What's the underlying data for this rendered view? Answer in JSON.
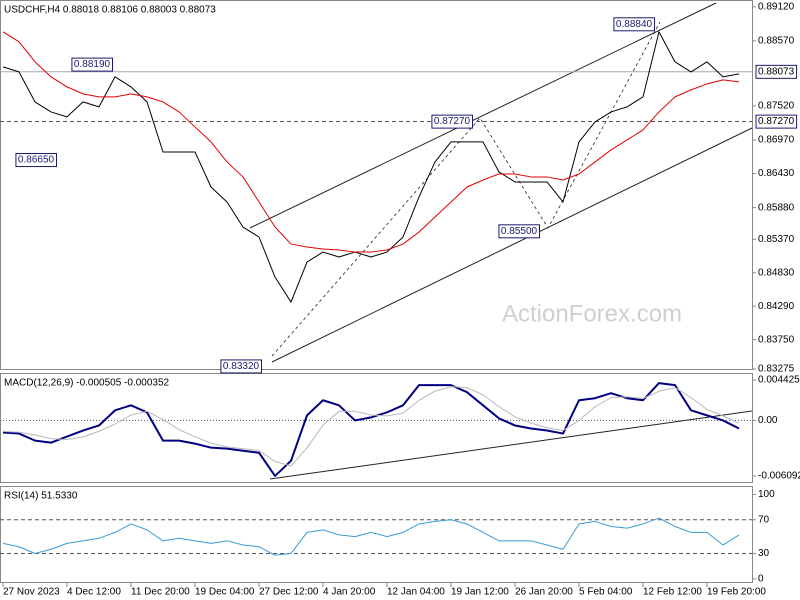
{
  "chart_data": [
    {
      "type": "line",
      "title": "USDCHF,H4  0.88018 0.88106 0.88003 0.88073",
      "watermark": "ActionForex.com",
      "ylim": [
        0.8923,
        0.8326
      ],
      "yticks": [
        {
          "value": 0.8912,
          "label": "0.89120"
        },
        {
          "value": 0.8857,
          "label": "0.88570"
        },
        {
          "value": 0.8752,
          "label": "0.87520"
        },
        {
          "value": 0.8697,
          "label": "0.86970"
        },
        {
          "value": 0.8643,
          "label": "0.86430"
        },
        {
          "value": 0.8588,
          "label": "0.85880"
        },
        {
          "value": 0.8537,
          "label": "0.85370"
        },
        {
          "value": 0.8483,
          "label": "0.84830"
        },
        {
          "value": 0.8429,
          "label": "0.84290"
        },
        {
          "value": 0.8375,
          "label": "0.83750"
        },
        {
          "value": 0.83275,
          "label": "0.83275"
        }
      ],
      "series": [
        {
          "color": "#000000",
          "values": [
            0.88151,
            0.8807,
            0.87586,
            0.87424,
            0.87344,
            0.87586,
            0.87505,
            0.8799,
            0.87828,
            0.87586,
            0.86778,
            0.86778,
            0.86778,
            0.86213,
            0.85971,
            0.85567,
            0.85406,
            0.8476,
            0.84356,
            0.85002,
            0.85163,
            0.85083,
            0.85163,
            0.85083,
            0.85163,
            0.85406,
            0.86052,
            0.86617,
            0.8694,
            0.8694,
            0.8694,
            0.86455,
            0.86294,
            0.86294,
            0.86294,
            0.85971,
            0.8694,
            0.87263,
            0.87424,
            0.87505,
            0.87667,
            0.88716,
            0.88232,
            0.8807,
            0.88232,
            0.8799,
            0.88038
          ]
        },
        {
          "color": "#e00000",
          "values": [
            0.88716,
            0.88555,
            0.88232,
            0.8799,
            0.87828,
            0.87715,
            0.87667,
            0.87667,
            0.87715,
            0.87667,
            0.87586,
            0.87424,
            0.87182,
            0.8694,
            0.86617,
            0.86375,
            0.85971,
            0.85567,
            0.85292,
            0.85244,
            0.85212,
            0.85196,
            0.85163,
            0.85163,
            0.85196,
            0.85292,
            0.85486,
            0.85729,
            0.85971,
            0.86213,
            0.86326,
            0.86423,
            0.86423,
            0.86375,
            0.86375,
            0.86326,
            0.86423,
            0.86617,
            0.86811,
            0.86972,
            0.87134,
            0.87424,
            0.87667,
            0.8778,
            0.87876,
            0.87941,
            0.87909
          ]
        }
      ],
      "levels": [
        {
          "value": 0.88073,
          "label": "0.88073",
          "style": "solid"
        },
        {
          "value": 0.8727,
          "label": "0.87270",
          "style": "dashed"
        }
      ],
      "annotations": [
        {
          "value": 0.8819,
          "label": "0.88190"
        },
        {
          "value": 0.8665,
          "label": "0.86650"
        },
        {
          "value": 0.8727,
          "label": "0.87270"
        },
        {
          "value": 0.855,
          "label": "0.85500"
        },
        {
          "value": 0.8332,
          "label": "0.83320"
        },
        {
          "value": 0.8884,
          "label": "0.88840"
        }
      ]
    },
    {
      "type": "line",
      "title": "MACD(12,26,9) -0.000505 -0.000352",
      "ylim": [
        0.0052,
        -0.00686
      ],
      "yticks": [
        0.004425,
        {
          "value": 0,
          "label": "0.00"
        },
        -0.006092
      ],
      "levels": [
        {
          "value": 0,
          "style": "dotted"
        }
      ],
      "series": [
        {
          "color": "#000080",
          "width": 2,
          "values": [
            -0.001327,
            -0.001438,
            -0.002212,
            -0.002434,
            -0.00177,
            -0.001106,
            -0.000553,
            0.001106,
            0.001659,
            0.000885,
            -0.002212,
            -0.002212,
            -0.002544,
            -0.002987,
            -0.003097,
            -0.003319,
            -0.00354,
            -0.006084,
            -0.004425,
            0.000553,
            0.002212,
            0.001659,
            0,
            0.000332,
            0.000885,
            0.001659,
            0.003872,
            0.003872,
            0.003872,
            0.003097,
            0.001659,
            0.000221,
            -0.000553,
            -0.000885,
            -0.001106,
            -0.001438,
            0.002212,
            0.002434,
            0.002987,
            0.002434,
            0.002212,
            0.004093,
            0.003872,
            0.001106,
            0.000553,
            0,
            -0.000885
          ]
        },
        {
          "color": "#b8b8b8",
          "width": 1,
          "values": [
            -0.0012,
            -0.0013,
            -0.0016,
            -0.002,
            -0.0021,
            -0.0018,
            -0.0012,
            -0.0004,
            0.0006,
            0.001,
            0.0001,
            -0.001,
            -0.0018,
            -0.0025,
            -0.0029,
            -0.0031,
            -0.0033,
            -0.0045,
            -0.005,
            -0.003,
            -0.0005,
            0.001,
            0.001,
            0.0006,
            0.0005,
            0.0008,
            0.0022,
            0.0032,
            0.0037,
            0.0036,
            0.0028,
            0.0015,
            0.0004,
            -0.0003,
            -0.0008,
            -0.0011,
            0,
            0.0015,
            0.0025,
            0.0026,
            0.0024,
            0.0032,
            0.0036,
            0.0025,
            0.0012,
            0.0005,
            -0.0003
          ]
        }
      ]
    },
    {
      "type": "line",
      "title": "RSI(14) 51.5330",
      "ylim": [
        110,
        -5
      ],
      "yticks": [
        100,
        70,
        30,
        0
      ],
      "levels": [
        {
          "value": 70,
          "style": "dashed"
        },
        {
          "value": 30,
          "style": "dashed"
        }
      ],
      "categories": [
        "27 Nov 2023",
        null,
        null,
        null,
        "4 Dec 12:00",
        null,
        null,
        null,
        "11 Dec 20:00",
        null,
        null,
        null,
        "19 Dec 04:00",
        null,
        null,
        null,
        "27 Dec 12:00",
        null,
        null,
        null,
        "4 Jan 20:00",
        null,
        null,
        null,
        "12 Jan 04:00",
        null,
        null,
        null,
        "19 Jan 12:00",
        null,
        null,
        null,
        "26 Jan 20:00",
        null,
        null,
        null,
        "5 Feb 04:00",
        null,
        null,
        null,
        "12 Feb 12:00",
        null,
        null,
        null,
        "19 Feb 20:00",
        null,
        null
      ],
      "series": [
        {
          "color": "#3a9ad9",
          "width": 1,
          "values": [
            42,
            38,
            30,
            35,
            42,
            45,
            48,
            55,
            65,
            58,
            45,
            48,
            45,
            42,
            45,
            40,
            38,
            28,
            30,
            55,
            58,
            52,
            50,
            55,
            50,
            55,
            65,
            68,
            70,
            65,
            55,
            45,
            45,
            45,
            40,
            35,
            65,
            68,
            62,
            60,
            65,
            72,
            62,
            55,
            55,
            40,
            52
          ]
        }
      ]
    }
  ]
}
